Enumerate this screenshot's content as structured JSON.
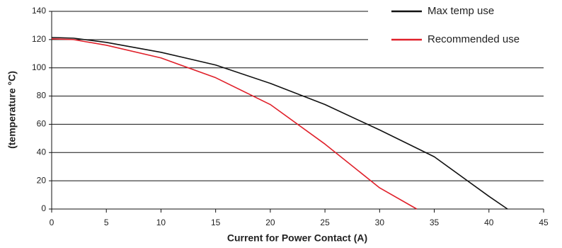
{
  "chart_data": {
    "type": "line",
    "xlabel": "Current for Power Contact (A)",
    "ylabel": "(temperature °C)",
    "xlim": [
      0,
      45
    ],
    "xticks": [
      0,
      5,
      10,
      15,
      20,
      25,
      30,
      35,
      40,
      45
    ],
    "ylim": [
      0,
      140
    ],
    "yticks": [
      0,
      20,
      40,
      60,
      80,
      100,
      120,
      140
    ],
    "grid": true,
    "legend": "upper right",
    "series": [
      {
        "name": "Max temp use",
        "color": "#111111",
        "x": [
          0,
          2,
          5,
          10,
          15,
          20,
          25,
          30,
          35,
          40,
          41.7
        ],
        "values": [
          121.5,
          121,
          118,
          111,
          102,
          89,
          74,
          56,
          37,
          9,
          0
        ]
      },
      {
        "name": "Recommended use",
        "color": "#e0202a",
        "x": [
          0,
          2,
          5,
          10,
          15,
          20,
          25,
          30,
          33.4
        ],
        "values": [
          120.5,
          120,
          116,
          107,
          93,
          74,
          46,
          15,
          0
        ]
      }
    ]
  }
}
